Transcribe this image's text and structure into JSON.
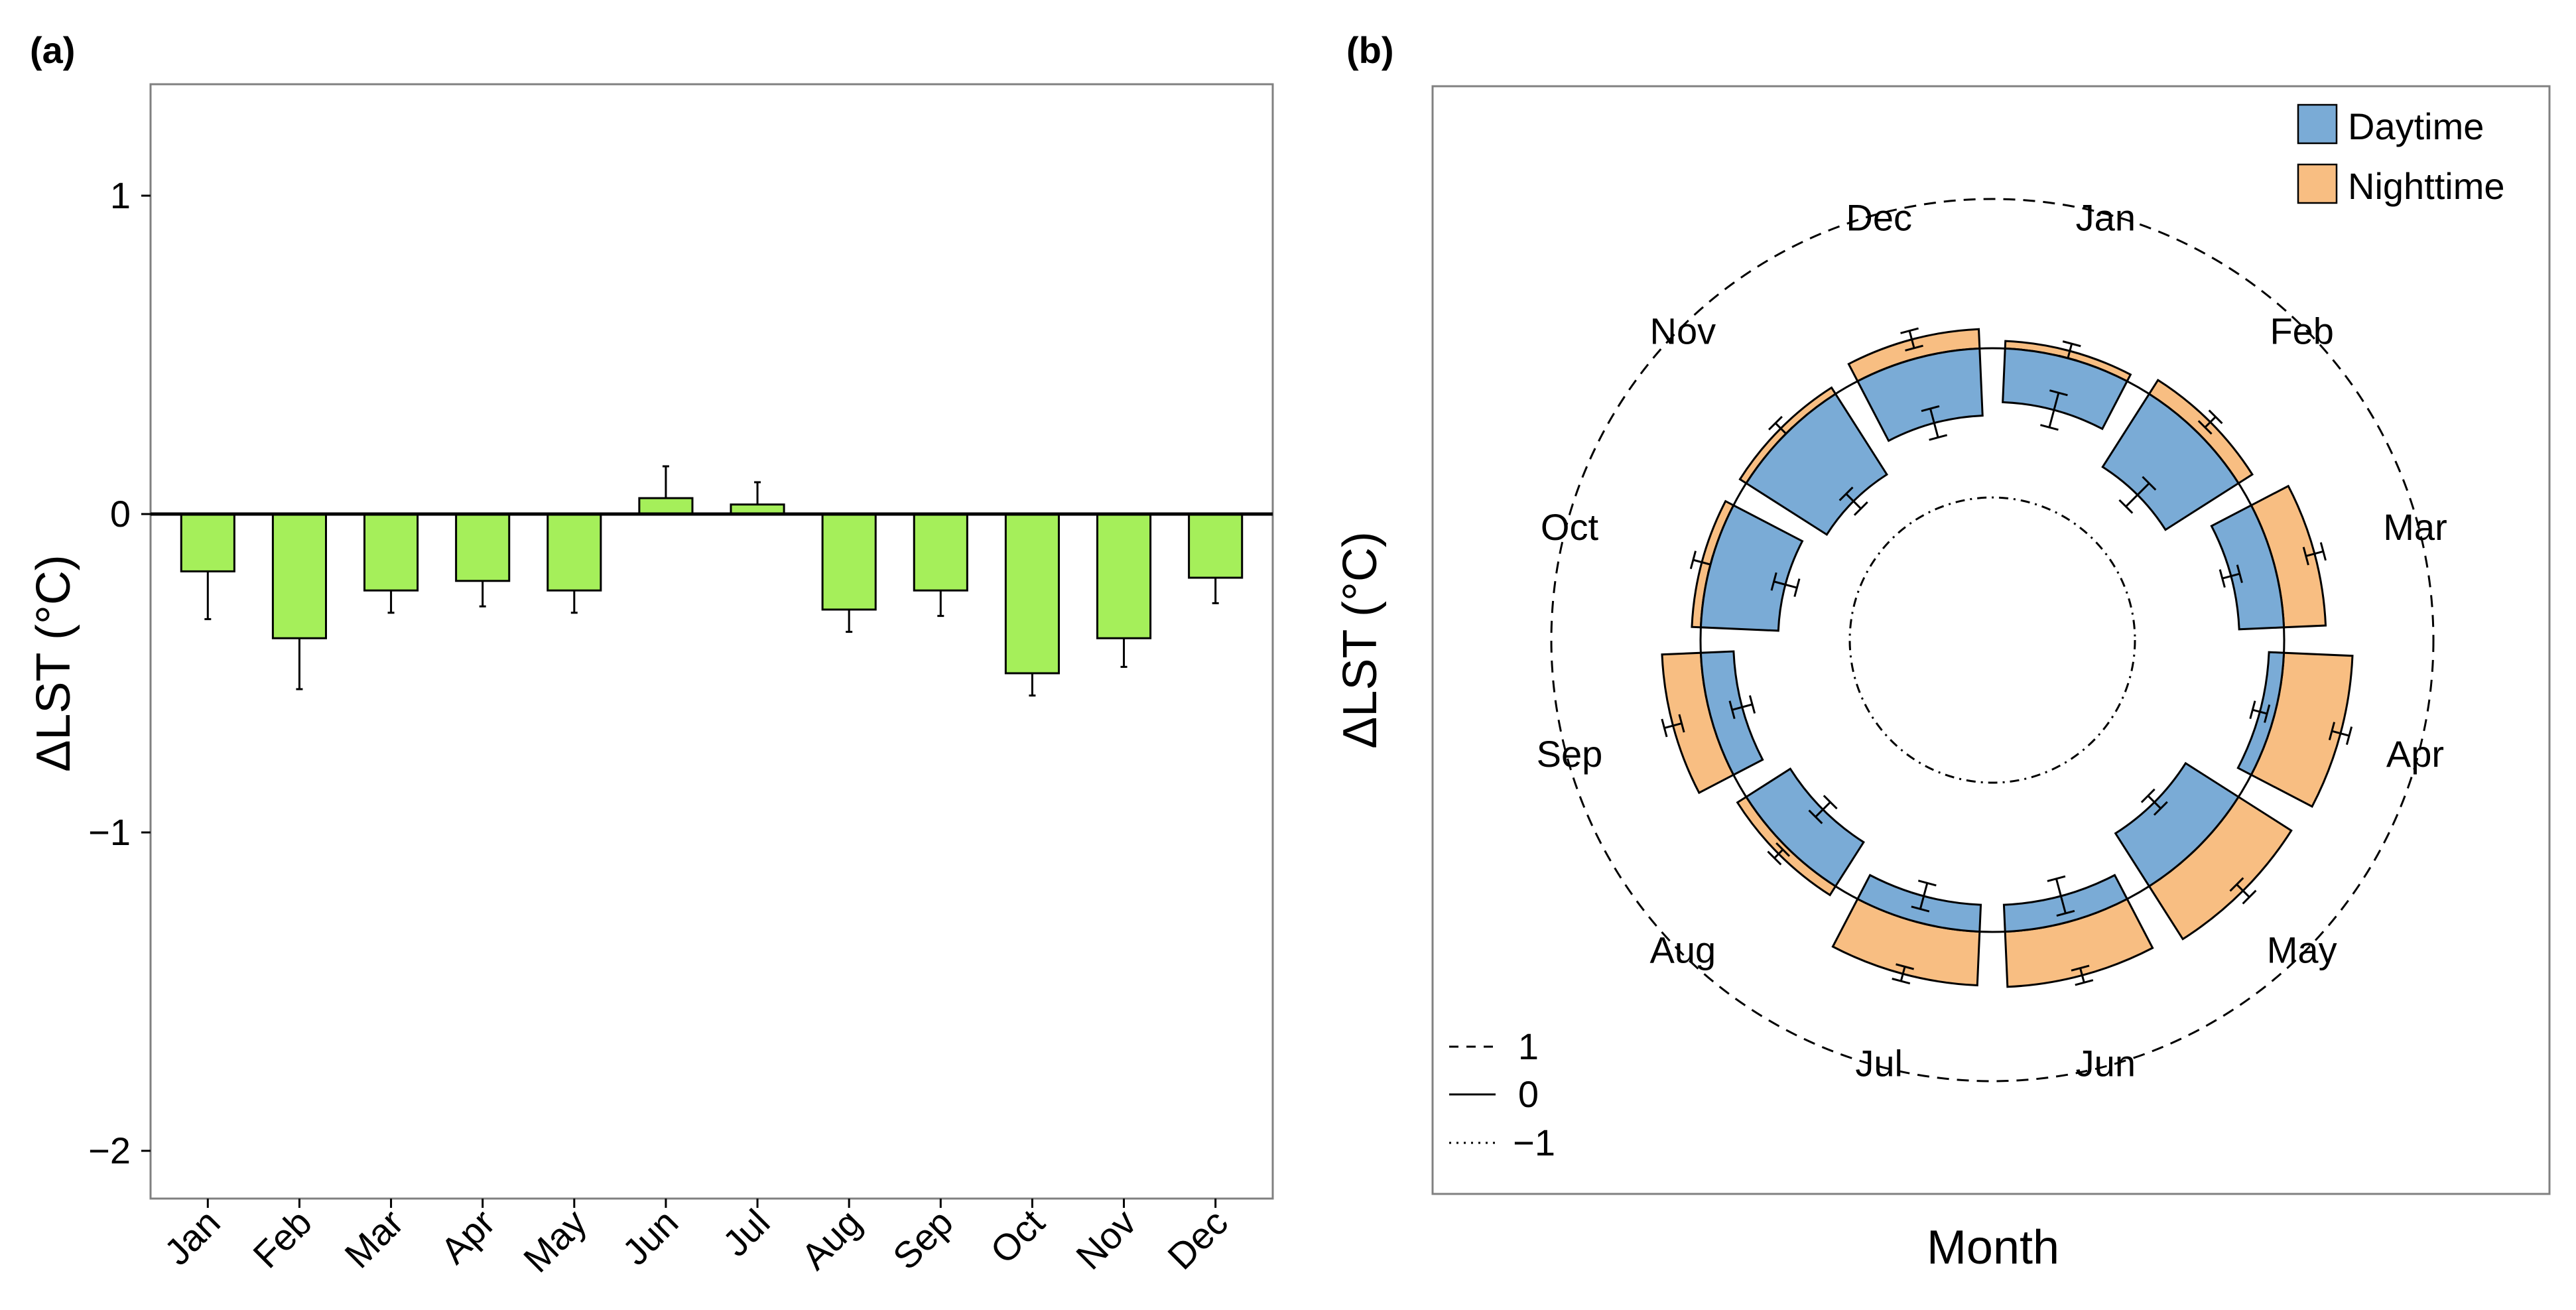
{
  "colors": {
    "bar_a": "#a5ef5a",
    "daytime": "#7aabd6",
    "nighttime": "#f8be82",
    "axis": "#000000",
    "frame": "#808080"
  },
  "chart_data": [
    {
      "panel": "(a)",
      "type": "bar",
      "title": "",
      "xlabel": "",
      "ylabel": "ΔLST (°C)",
      "ylim": [
        -2.15,
        1.35
      ],
      "yticks": [
        1,
        0,
        -1,
        -2
      ],
      "ytick_labels": [
        "1",
        "0",
        "−1",
        "−2"
      ],
      "categories": [
        "Jan",
        "Feb",
        "Mar",
        "Apr",
        "May",
        "Jun",
        "Jul",
        "Aug",
        "Sep",
        "Oct",
        "Nov",
        "Dec"
      ],
      "values": [
        -0.18,
        -0.39,
        -0.24,
        -0.21,
        -0.24,
        0.05,
        0.03,
        -0.3,
        -0.24,
        -0.5,
        -0.39,
        -0.2
      ],
      "errors": [
        0.15,
        0.16,
        0.07,
        0.08,
        0.07,
        0.1,
        0.07,
        0.07,
        0.08,
        0.07,
        0.09,
        0.08
      ]
    },
    {
      "panel": "(b)",
      "type": "polar-bar",
      "title": "",
      "xlabel": "Month",
      "ylabel": "ΔLST (°C)",
      "categories": [
        "Jan",
        "Feb",
        "Mar",
        "Apr",
        "May",
        "Jun",
        "Jul",
        "Aug",
        "Sep",
        "Oct",
        "Nov",
        "Dec"
      ],
      "rlim": [
        -1,
        1
      ],
      "reference_circles": [
        {
          "value": 1,
          "label": "1",
          "style": "dashed"
        },
        {
          "value": 0,
          "label": "0",
          "style": "solid"
        },
        {
          "value": -1,
          "label": "−1",
          "style": "dotdash"
        }
      ],
      "series": [
        {
          "name": "Daytime",
          "values": [
            -0.36,
            -0.58,
            -0.3,
            -0.1,
            -0.42,
            -0.18,
            -0.18,
            -0.35,
            -0.22,
            -0.52,
            -0.64,
            -0.45
          ],
          "errors": [
            0.12,
            0.11,
            0.06,
            0.05,
            0.06,
            0.12,
            0.09,
            0.07,
            0.07,
            0.08,
            0.07,
            0.1
          ]
        },
        {
          "name": "Nighttime",
          "values": [
            0.05,
            0.11,
            0.28,
            0.46,
            0.42,
            0.37,
            0.36,
            0.07,
            0.26,
            0.06,
            0.05,
            0.13
          ],
          "errors": [
            0.05,
            0.05,
            0.06,
            0.06,
            0.06,
            0.05,
            0.05,
            0.04,
            0.06,
            0.06,
            0.05,
            0.06
          ]
        }
      ],
      "legend_position": "top-right"
    }
  ]
}
